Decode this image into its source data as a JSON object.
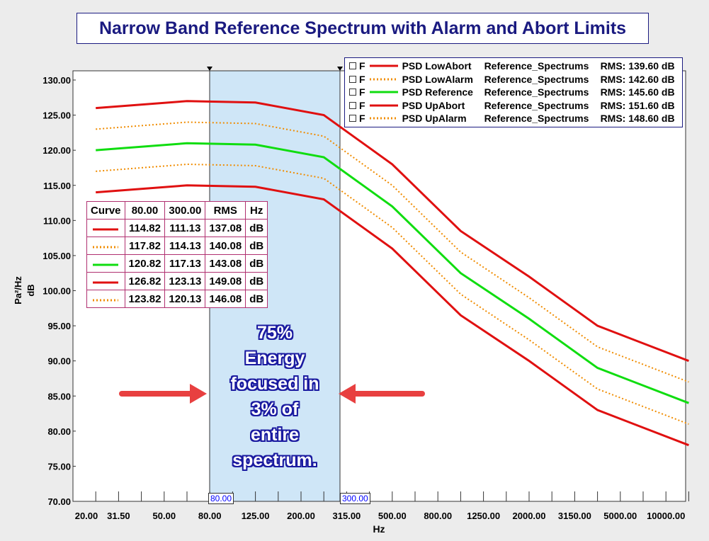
{
  "chart_data": {
    "type": "line",
    "title": "Narrow Band Reference Spectrum with Alarm and Abort Limits",
    "xlabel": "Hz",
    "ylabel": "dB",
    "yunit": "Pa²/Hz",
    "ylim": [
      70,
      130
    ],
    "yticks": [
      "70.00",
      "75.00",
      "80.00",
      "85.00",
      "90.00",
      "95.00",
      "100.00",
      "105.00",
      "110.00",
      "115.00",
      "120.00",
      "125.00",
      "130.00"
    ],
    "xbands": [
      20,
      25,
      31.5,
      40,
      50,
      63,
      80,
      100,
      125,
      160,
      200,
      250,
      315,
      400,
      500,
      630,
      800,
      1000,
      1250,
      1600,
      2000,
      2500,
      3150,
      4000,
      5000,
      6300,
      8000,
      10000
    ],
    "xticklabels": [
      "20.00",
      "31.50",
      "50.00",
      "80.00",
      "125.00",
      "200.00",
      "315.00",
      "500.00",
      "800.00",
      "1250.00",
      "2000.00",
      "3150.00",
      "5000.00",
      "10000.00"
    ],
    "x": [
      25,
      63,
      125,
      250,
      500,
      1000,
      2000,
      4000,
      10000
    ],
    "series": [
      {
        "name": "PSD LowAbort",
        "group": "Reference_Spectrums",
        "rms": "RMS: 139.60 dB",
        "color": "#e01010",
        "style": "solid",
        "values": [
          114,
          115,
          114.8,
          113,
          106,
          96.5,
          90,
          83,
          78
        ]
      },
      {
        "name": "PSD LowAlarm",
        "group": "Reference_Spectrums",
        "rms": "RMS: 142.60 dB",
        "color": "#f08c00",
        "style": "dotted",
        "values": [
          117,
          118,
          117.8,
          116,
          109,
          99.5,
          93,
          86,
          81
        ]
      },
      {
        "name": "PSD Reference",
        "group": "Reference_Spectrums",
        "rms": "RMS: 145.60 dB",
        "color": "#10dd10",
        "style": "solid",
        "values": [
          120,
          121,
          120.8,
          119,
          112,
          102.5,
          96,
          89,
          84
        ]
      },
      {
        "name": "PSD UpAbort",
        "group": "Reference_Spectrums",
        "rms": "RMS: 151.60 dB",
        "color": "#e01010",
        "style": "solid",
        "values": [
          126,
          127,
          126.8,
          125,
          118,
          108.5,
          102,
          95,
          90
        ]
      },
      {
        "name": "PSD UpAlarm",
        "group": "Reference_Spectrums",
        "rms": "RMS: 148.60 dB",
        "color": "#f08c00",
        "style": "dotted",
        "values": [
          123,
          124,
          123.8,
          122,
          115,
          105.5,
          99,
          92,
          87
        ]
      }
    ],
    "cursors": [
      "80.00",
      "300.00"
    ],
    "legend_flag": "F",
    "table": {
      "headers": [
        "Curve",
        "80.00",
        "300.00",
        "RMS",
        "Hz"
      ],
      "rows": [
        [
          "114.82",
          "111.13",
          "137.08",
          "dB"
        ],
        [
          "117.82",
          "114.13",
          "140.08",
          "dB"
        ],
        [
          "120.82",
          "117.13",
          "143.08",
          "dB"
        ],
        [
          "126.82",
          "123.13",
          "149.08",
          "dB"
        ],
        [
          "123.82",
          "120.13",
          "146.08",
          "dB"
        ]
      ]
    },
    "annotation": [
      "75%",
      "Energy",
      "focused in",
      "3% of",
      "entire",
      "spectrum."
    ]
  }
}
